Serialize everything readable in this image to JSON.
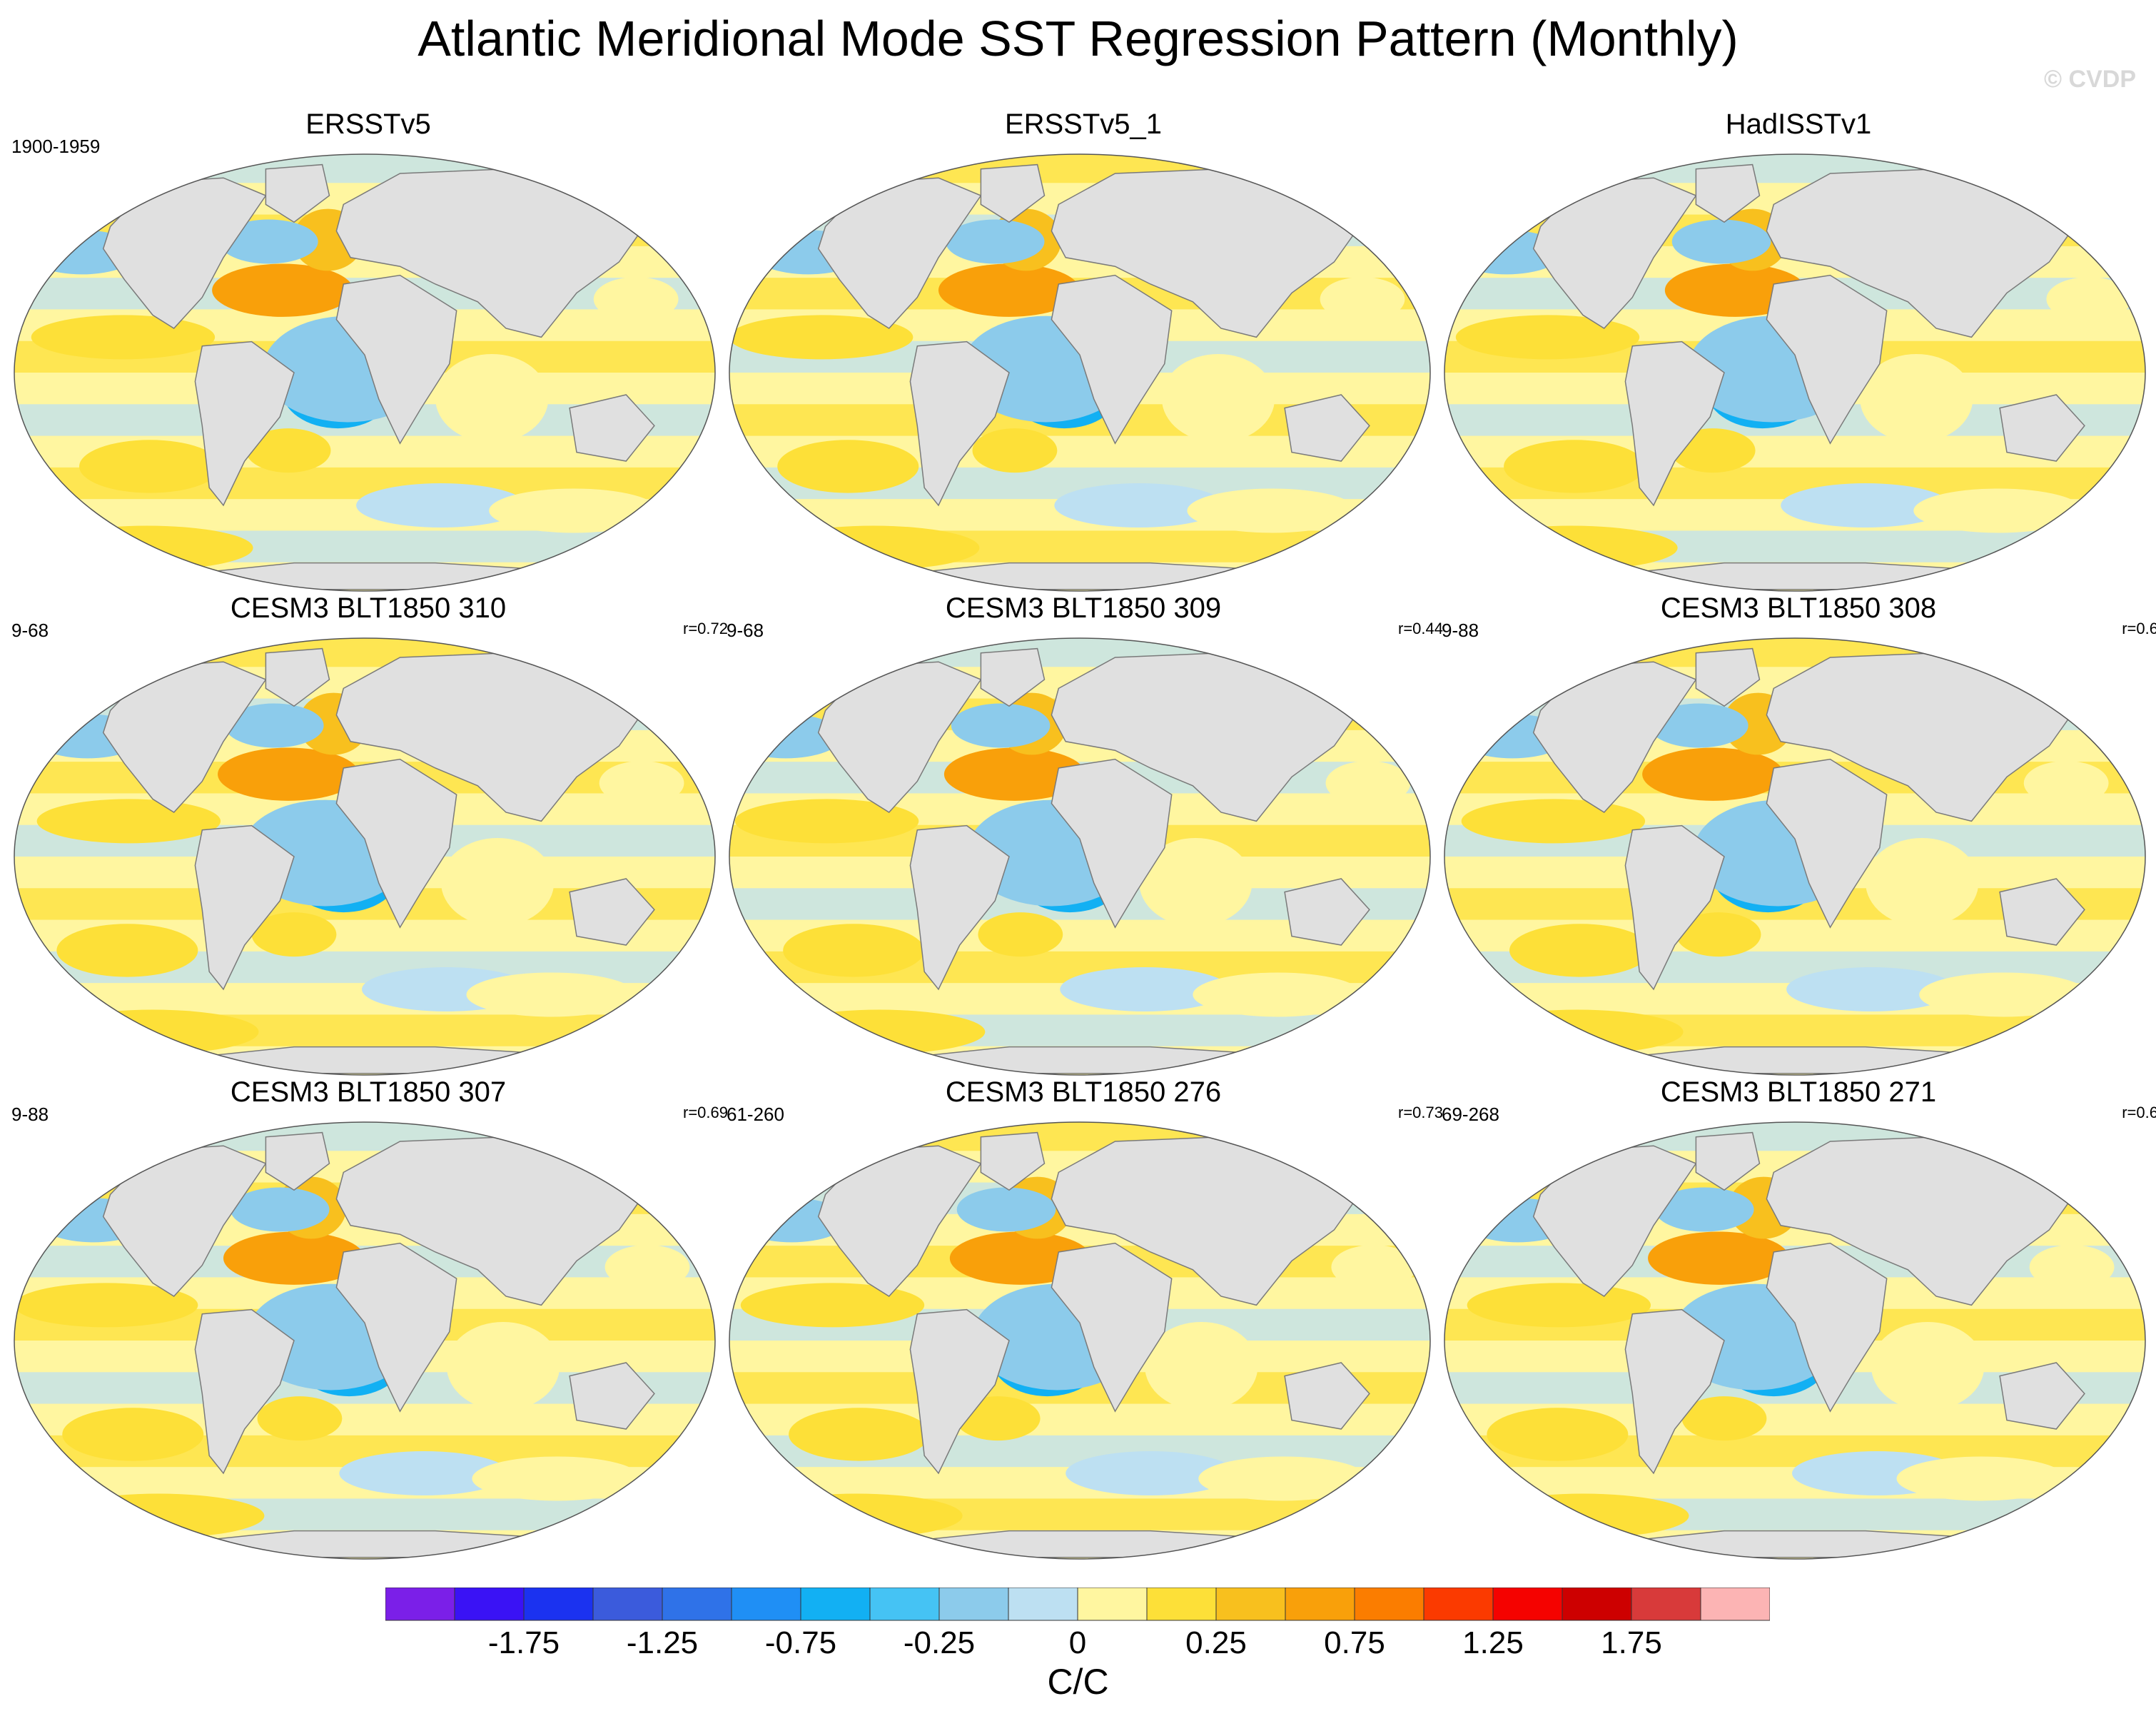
{
  "figure": {
    "title": "Atlantic Meridional Mode SST Regression Pattern (Monthly)",
    "watermark": "© CVDP"
  },
  "chart_data": {
    "type": "heatmap",
    "title": "Atlantic Meridional Mode SST Regression Pattern (Monthly)",
    "projection": "Robinson global map",
    "panels": [
      {
        "name": "ERSSTv5",
        "years": "1900-1959",
        "corr": ""
      },
      {
        "name": "ERSSTv5_1",
        "years": "",
        "corr": ""
      },
      {
        "name": "HadISSTv1",
        "years": "",
        "corr": ""
      },
      {
        "name": "CESM3 BLT1850 310",
        "years": "9-68",
        "corr": "r=0.72"
      },
      {
        "name": "CESM3 BLT1850 309",
        "years": "9-68",
        "corr": "r=0.44"
      },
      {
        "name": "CESM3 BLT1850 308",
        "years": "9-88",
        "corr": "r=0.6"
      },
      {
        "name": "CESM3 BLT1850 307",
        "years": "9-88",
        "corr": "r=0.69"
      },
      {
        "name": "CESM3 BLT1850 276",
        "years": "61-260",
        "corr": "r=0.73"
      },
      {
        "name": "CESM3 BLT1850 271",
        "years": "69-268",
        "corr": "r=0.6"
      }
    ],
    "colorbar": {
      "label": "C/C",
      "tick_labels": [
        "-1.75",
        "-1.25",
        "-0.75",
        "-0.25",
        "0",
        "0.25",
        "0.75",
        "1.25",
        "1.75"
      ],
      "colors": [
        "#7b1fe8",
        "#3a12f5",
        "#1b32f0",
        "#3b5bdc",
        "#2f72e8",
        "#1f8ff5",
        "#12b0f3",
        "#45c3f4",
        "#8ccbeb",
        "#bde0f2",
        "#fff6a0",
        "#fde038",
        "#f8c01e",
        "#f9a00a",
        "#fb7d00",
        "#fb3a00",
        "#f50200",
        "#cd0000",
        "#d83a3a",
        "#fcb4b4"
      ]
    },
    "pattern_features": {
      "north_tropical_atlantic": "warm (positive)",
      "south_tropical_atlantic": "cool (negative)",
      "north_pacific": "mostly cool",
      "southern_ocean": "mixed warm/cool"
    }
  }
}
